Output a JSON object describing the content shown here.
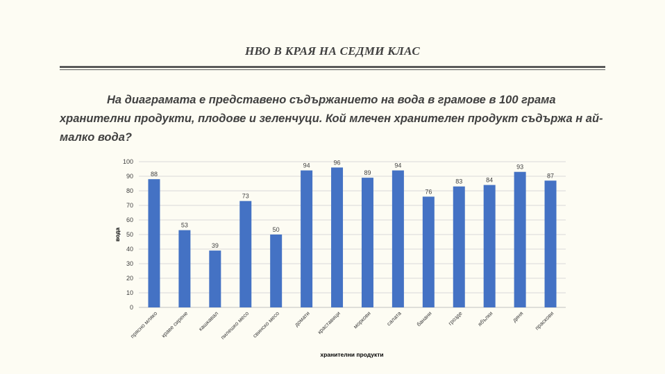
{
  "header": {
    "title": "НВО В КРАЯ НА СЕДМИ КЛАС"
  },
  "question": {
    "text": "На диаграмата е представено съдържанието на вода в грамове в 100 грама хранителни продукти, плодове и зеленчуци. Кой млечен хранителен продукт съдържа н ай-малко вода?"
  },
  "colors": {
    "bar": "#4472c4",
    "grid": "#d9d9d9",
    "axis": "#bfbfbf"
  },
  "chart_data": {
    "type": "bar",
    "title": "",
    "xlabel": "хранителни продукти",
    "ylabel": "вода",
    "ylim": [
      0,
      100
    ],
    "yticks": [
      0,
      10,
      20,
      30,
      40,
      50,
      60,
      70,
      80,
      90,
      100
    ],
    "grid": true,
    "legend": "none",
    "categories": [
      "прясно мляко",
      "краве сирене",
      "кашкавал",
      "пилешко месо",
      "свинско месо",
      "домати",
      "краставици",
      "моркови",
      "салата",
      "банани",
      "грозде",
      "ябълки",
      "диня",
      "праскови"
    ],
    "values": [
      88,
      53,
      39,
      73,
      50,
      94,
      96,
      89,
      94,
      76,
      83,
      84,
      93,
      87
    ]
  }
}
